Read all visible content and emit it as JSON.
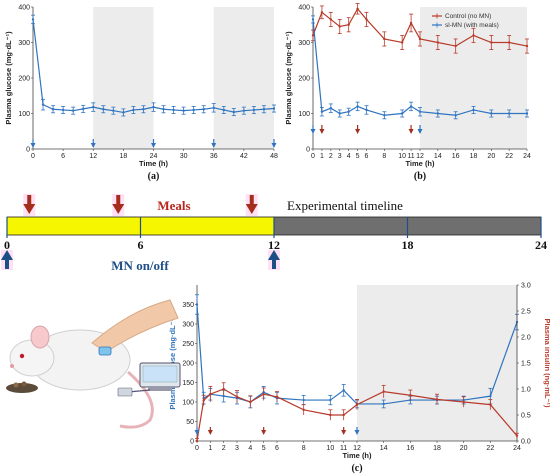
{
  "colors": {
    "control": "#b83a2a",
    "mn": "#2f74c0",
    "insulin": "#b83a2a",
    "glucose_c": "#2f74c0",
    "shade": "#ececec",
    "yellow": "#f6f600",
    "gray": "#6f6f6f",
    "meal_arrow": "#a42d1c",
    "mn_arrow": "#1c4f86"
  },
  "icons": {
    "meal": "arrow-down-icon",
    "mn": "arrow-up-icon",
    "illustration": "rat-with-glucose-meter-illustration"
  },
  "chart_data": [
    {
      "type": "line",
      "label": "(a)",
      "xlabel": "Time (h)",
      "ylabel": "Plasma glucose (mg·dL⁻¹)",
      "xlim": [
        0,
        48
      ],
      "ylim": [
        0,
        400
      ],
      "xticks": [
        0,
        6,
        12,
        18,
        24,
        30,
        36,
        42,
        48
      ],
      "yticks": [
        0,
        100,
        200,
        300,
        400
      ],
      "shaded": [
        [
          12,
          24
        ],
        [
          36,
          48
        ]
      ],
      "arrows": [
        0,
        12,
        24,
        36,
        48
      ],
      "series": [
        {
          "color": "#2f74c0",
          "x": [
            0,
            2,
            4,
            6,
            8,
            10,
            12,
            14,
            16,
            18,
            20,
            22,
            24,
            26,
            28,
            30,
            32,
            34,
            36,
            38,
            40,
            42,
            44,
            46,
            48
          ],
          "y": [
            365,
            125,
            112,
            110,
            108,
            113,
            118,
            112,
            108,
            103,
            110,
            112,
            118,
            112,
            110,
            108,
            110,
            112,
            116,
            110,
            104,
            108,
            110,
            112,
            114
          ],
          "err": [
            12,
            15,
            10,
            10,
            10,
            10,
            12,
            10,
            10,
            10,
            10,
            10,
            12,
            10,
            10,
            10,
            10,
            10,
            12,
            10,
            10,
            10,
            10,
            10,
            10
          ]
        }
      ]
    },
    {
      "type": "line",
      "label": "(b)",
      "xlabel": "Time (h)",
      "ylabel": "Plasma glucose (mg·dL⁻¹)",
      "xlim": [
        0,
        24
      ],
      "ylim": [
        0,
        400
      ],
      "xticks": [
        0,
        1,
        2,
        3,
        4,
        5,
        6,
        8,
        10,
        11,
        12,
        14,
        16,
        18,
        20,
        22,
        24
      ],
      "yticks": [
        0,
        100,
        200,
        300,
        400
      ],
      "shaded": [
        [
          12,
          24
        ]
      ],
      "legend": "top-right",
      "meal_arrows": [
        1,
        5,
        11
      ],
      "mn_arrows": [
        0,
        12
      ],
      "series": [
        {
          "name": "Control (no MN)",
          "color": "#b83a2a",
          "x": [
            0,
            1,
            2,
            3,
            4,
            5,
            6,
            8,
            10,
            11,
            12,
            14,
            16,
            18,
            20,
            22,
            24
          ],
          "y": [
            320,
            385,
            365,
            345,
            350,
            395,
            365,
            310,
            300,
            355,
            310,
            300,
            290,
            320,
            300,
            300,
            290
          ],
          "err": [
            15,
            18,
            20,
            20,
            20,
            15,
            20,
            20,
            20,
            25,
            20,
            20,
            20,
            20,
            20,
            20,
            20
          ]
        },
        {
          "name": "sl-MN (with meals)",
          "color": "#2f74c0",
          "x": [
            0,
            1,
            2,
            3,
            4,
            5,
            6,
            8,
            10,
            11,
            12,
            14,
            16,
            18,
            20,
            22,
            24
          ],
          "y": [
            365,
            105,
            115,
            100,
            105,
            120,
            110,
            95,
            100,
            120,
            105,
            100,
            95,
            110,
            100,
            100,
            100
          ],
          "err": [
            10,
            12,
            12,
            10,
            10,
            12,
            12,
            10,
            10,
            12,
            12,
            10,
            10,
            10,
            10,
            10,
            10
          ]
        }
      ]
    },
    {
      "type": "timeline",
      "title": "Experimental timeline",
      "meals_label": "Meals",
      "mn_label": "MN on/off",
      "ticks": [
        0,
        6,
        12,
        18,
        24
      ],
      "tick_labels": [
        "0",
        "6",
        "12",
        "18",
        "24"
      ],
      "active_range": [
        0,
        12
      ],
      "meal_times": [
        1,
        5,
        11
      ],
      "mn_times": [
        0,
        12
      ]
    },
    {
      "type": "line",
      "label": "(c)",
      "xlabel": "Time (h)",
      "ylabel": "Plasma glucose (mg·dL⁻¹)",
      "ylabel2": "Plasma insulin (ng·mL⁻¹)",
      "xlim": [
        0,
        24
      ],
      "ylim": [
        0,
        400
      ],
      "ylim2": [
        0,
        3.0
      ],
      "xticks": [
        0,
        1,
        2,
        3,
        4,
        5,
        6,
        8,
        10,
        11,
        12,
        14,
        16,
        18,
        20,
        22,
        24
      ],
      "yticks": [
        0,
        50,
        100,
        150,
        200,
        250,
        300,
        350
      ],
      "yticks2": [
        "0.0",
        "0.5",
        "1.0",
        "1.5",
        "2.0",
        "2.5",
        "3.0"
      ],
      "shaded": [
        [
          12,
          24
        ]
      ],
      "meal_arrows": [
        1,
        5,
        11
      ],
      "mn_arrows": [
        0,
        12
      ],
      "series": [
        {
          "name": "glucose",
          "color": "#2f74c0",
          "axis": "left",
          "x": [
            0,
            0.5,
            1,
            2,
            3,
            4,
            5,
            6,
            8,
            10,
            11,
            12,
            14,
            16,
            18,
            20,
            22,
            24
          ],
          "y": [
            350,
            110,
            120,
            115,
            110,
            100,
            125,
            110,
            105,
            105,
            130,
            95,
            95,
            105,
            105,
            105,
            115,
            305
          ],
          "err": [
            25,
            15,
            15,
            15,
            15,
            15,
            15,
            15,
            12,
            12,
            15,
            10,
            10,
            10,
            10,
            10,
            20,
            20
          ]
        },
        {
          "name": "insulin",
          "color": "#b83a2a",
          "axis": "right",
          "x": [
            0,
            0.5,
            1,
            2,
            3,
            4,
            5,
            6,
            8,
            10,
            11,
            12,
            14,
            16,
            18,
            20,
            22,
            24
          ],
          "y": [
            0.0,
            0.78,
            0.9,
            1.0,
            0.85,
            0.75,
            0.9,
            0.85,
            0.6,
            0.5,
            0.5,
            0.7,
            0.95,
            0.88,
            0.8,
            0.75,
            0.7,
            0.1
          ],
          "err": [
            0.05,
            0.1,
            0.15,
            0.12,
            0.12,
            0.12,
            0.12,
            0.1,
            0.1,
            0.1,
            0.1,
            0.1,
            0.12,
            0.1,
            0.1,
            0.1,
            0.1,
            0.05
          ]
        }
      ]
    }
  ]
}
